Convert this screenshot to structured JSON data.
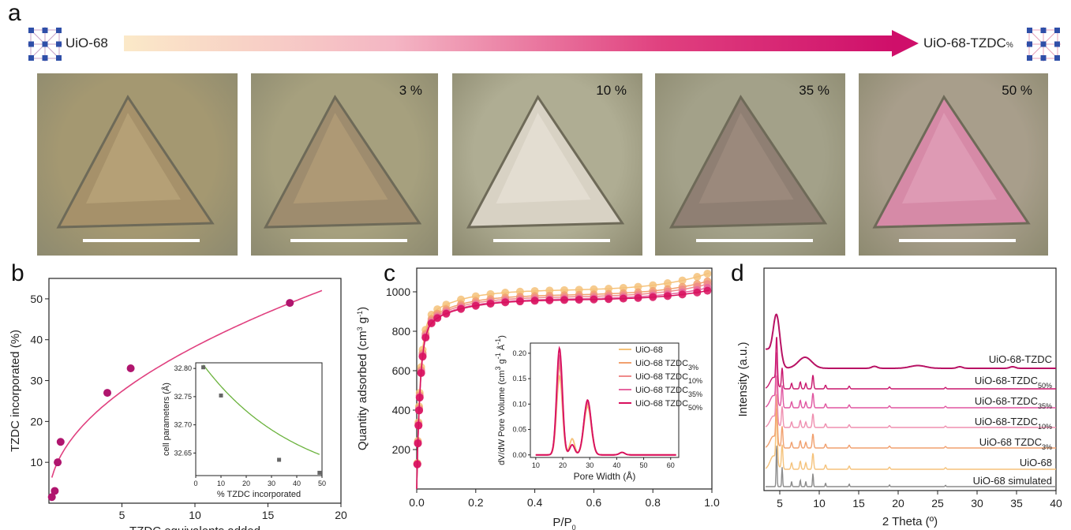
{
  "panels": {
    "a": "a",
    "b": "b",
    "c": "c",
    "d": "d"
  },
  "header": {
    "left_label": "UiO-68",
    "right_label_main": "UiO-68-TZDC",
    "right_label_sub": "%"
  },
  "photos": [
    {
      "label": "",
      "base": "#a49871",
      "tri": "#a6916a",
      "tri_hi": "#c1ad7f"
    },
    {
      "label": "3 %",
      "base": "#a6a07e",
      "tri": "#9e8c6e",
      "tri_hi": "#bba47c"
    },
    {
      "label": "10 %",
      "base": "#afad93",
      "tri": "#d8d2c4",
      "tri_hi": "#ece6dc"
    },
    {
      "label": "35 %",
      "base": "#a3a189",
      "tri": "#8f7f73",
      "tri_hi": "#a59284"
    },
    {
      "label": "50 %",
      "base": "#a89e8b",
      "tri": "#d68aa7",
      "tri_hi": "#e6a8c0"
    }
  ],
  "chart_data": [
    {
      "panel": "b",
      "type": "scatter",
      "xlabel": "TZDC equivalents added",
      "ylabel": "TZDC incorporated (%)",
      "xlim": [
        0,
        20
      ],
      "ylim": [
        0,
        55
      ],
      "xticks": [
        5,
        10,
        15,
        20
      ],
      "yticks": [
        10,
        20,
        30,
        40,
        50
      ],
      "points": [
        [
          0.2,
          1.5
        ],
        [
          0.4,
          3
        ],
        [
          0.6,
          10
        ],
        [
          0.8,
          15
        ],
        [
          4,
          27
        ],
        [
          5.6,
          33
        ],
        [
          16.5,
          49
        ]
      ],
      "fit_color": "#e0407f",
      "point_color": "#b0156e",
      "inset": {
        "type": "scatter",
        "xlabel": "% TZDC incorporated",
        "ylabel": "cell parameters (Å)",
        "xlim": [
          0,
          50
        ],
        "ylim": [
          32.61,
          32.81
        ],
        "xticks": [
          0,
          10,
          20,
          30,
          40,
          50
        ],
        "yticks": [
          32.65,
          32.7,
          32.75,
          32.8
        ],
        "yticklabels": [
          "32.65",
          "32.70",
          "32.75",
          "32.80"
        ],
        "points": [
          [
            3,
            32.802
          ],
          [
            10,
            32.752
          ],
          [
            33,
            32.638
          ],
          [
            49,
            32.615
          ]
        ],
        "fit_color": "#6ab23c",
        "point_color": "#666666"
      }
    },
    {
      "panel": "c",
      "type": "scatter",
      "xlabel": "P/P",
      "xlabel_sub": "0",
      "ylabel": "Quantity adsorbed (cm",
      "ylabel_sup": "3",
      "ylabel_mid": " g",
      "ylabel_sup2": "-1",
      "ylabel_end": ")",
      "xlim": [
        0,
        1.0
      ],
      "ylim": [
        0,
        1120
      ],
      "xticks": [
        0.0,
        0.2,
        0.4,
        0.6,
        0.8,
        1.0
      ],
      "xticklabels": [
        "0.0",
        "0.2",
        "0.4",
        "0.6",
        "0.8",
        "1.0"
      ],
      "yticks": [
        200,
        400,
        600,
        800,
        1000
      ],
      "series": [
        {
          "name": "UiO-68",
          "color": "#f5c27a",
          "plateau": 1010,
          "end": 1100
        },
        {
          "name": "UiO-68 TZDC3%",
          "color": "#f1a06e",
          "plateau": 985,
          "end": 1060
        },
        {
          "name": "UiO-68 TZDC10%",
          "color": "#ef8a8a",
          "plateau": 975,
          "end": 1045
        },
        {
          "name": "UiO-68 TZDC35%",
          "color": "#e666a0",
          "plateau": 965,
          "end": 1025
        },
        {
          "name": "UiO-68 TZDC50%",
          "color": "#d8105e",
          "plateau": 960,
          "end": 1010
        }
      ],
      "inset": {
        "type": "line",
        "xlabel": "Pore Width (Å)",
        "ylabel": "dV/dW Pore Volume (cm",
        "ylabel_sup": "3",
        "ylabel_mid": " g",
        "ylabel_sup2": "-1",
        "ylabel_end": " Å",
        "ylabel_sup3": "-1",
        "ylabel_close": ")",
        "xlim": [
          8,
          63
        ],
        "ylim": [
          -0.005,
          0.22
        ],
        "xticks": [
          10,
          20,
          30,
          40,
          50,
          60
        ],
        "yticks": [
          0.0,
          0.05,
          0.1,
          0.15,
          0.2
        ],
        "yticklabels": [
          "0.00",
          "0.05",
          "0.10",
          "0.15",
          "0.20"
        ],
        "legend": [
          {
            "main": "UiO-68",
            "sub": ""
          },
          {
            "main": "UiO-68 TZDC",
            "sub": "3%"
          },
          {
            "main": "UiO-68 TZDC",
            "sub": "10%"
          },
          {
            "main": "UiO-68 TZDC",
            "sub": "35%"
          },
          {
            "main": "UiO-68 TZDC",
            "sub": "50%"
          }
        ],
        "peaks": [
          {
            "p1": 0.155,
            "p2": 0.095
          },
          {
            "p1": 0.175,
            "p2": 0.1
          },
          {
            "p1": 0.185,
            "p2": 0.105
          },
          {
            "p1": 0.195,
            "p2": 0.105
          },
          {
            "p1": 0.21,
            "p2": 0.108
          }
        ]
      }
    },
    {
      "panel": "d",
      "type": "line",
      "xlabel": "2 Theta (º)",
      "ylabel": "Intensity (a.u.)",
      "xlim": [
        3,
        40
      ],
      "xticks": [
        5,
        10,
        15,
        20,
        25,
        30,
        35,
        40
      ],
      "series": [
        {
          "name": "UiO-68 simulated",
          "color": "#8c8c8c",
          "kind": "sim"
        },
        {
          "name": "UiO-68",
          "color": "#f5c27a",
          "kind": "sharp"
        },
        {
          "name": "UiO-68 TZDC",
          "sub": "3%",
          "color": "#f1a06e",
          "kind": "sharp"
        },
        {
          "name": "UiO-68-TZDC",
          "sub": "10%",
          "color": "#ef8fb0",
          "kind": "sharp"
        },
        {
          "name": "UiO-68-TZDC",
          "sub": "35%",
          "color": "#e055a0",
          "kind": "sharp"
        },
        {
          "name": "UiO-68-TZDC",
          "sub": "50%",
          "color": "#c8156c",
          "kind": "sharp"
        },
        {
          "name": "UiO-68-TZDC",
          "sub": "",
          "color": "#b81264",
          "kind": "broad"
        }
      ]
    }
  ]
}
